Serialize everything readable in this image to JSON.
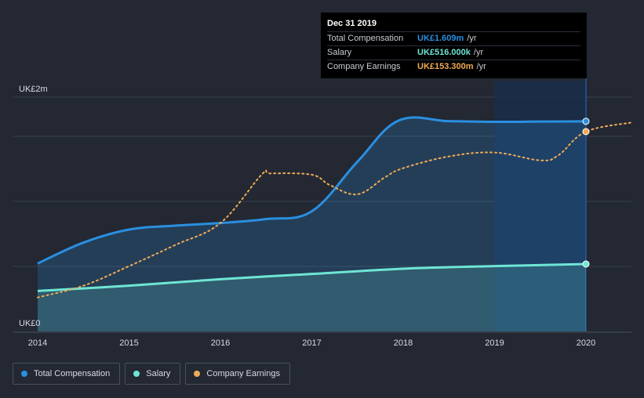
{
  "chart_data": {
    "type": "area",
    "title": "",
    "xlabel": "",
    "ylabel": "",
    "x_ticks": [
      "2014",
      "2015",
      "2016",
      "2017",
      "2018",
      "2019",
      "2020"
    ],
    "y_tick_labels": [
      "UK£2m",
      "UK£0"
    ],
    "ylim": [
      0,
      1.8
    ],
    "xlim": [
      2014,
      2020.5
    ],
    "series": [
      {
        "name": "Total Compensation",
        "color": "#2a8fe0",
        "style": "solid-area",
        "x": [
          2014.0,
          2014.5,
          2015.0,
          2015.5,
          2016.0,
          2016.5,
          2017.0,
          2017.5,
          2017.95,
          2018.5,
          2019.0,
          2019.5,
          2020.0
        ],
        "y": [
          0.52,
          0.68,
          0.78,
          0.81,
          0.83,
          0.86,
          0.92,
          1.3,
          1.615,
          1.61,
          1.605,
          1.607,
          1.609
        ]
      },
      {
        "name": "Salary",
        "color": "#6ee6d4",
        "style": "solid-area",
        "x": [
          2014.0,
          2015.0,
          2016.0,
          2017.0,
          2018.0,
          2019.0,
          2020.0
        ],
        "y": [
          0.31,
          0.35,
          0.4,
          0.44,
          0.48,
          0.5,
          0.516
        ]
      },
      {
        "name": "Company Earnings",
        "color": "#f0aa55",
        "style": "dotted",
        "x": [
          2014.0,
          2014.5,
          2015.0,
          2015.5,
          2016.0,
          2016.45,
          2016.55,
          2017.0,
          2017.2,
          2017.5,
          2017.8,
          2018.0,
          2018.5,
          2019.0,
          2019.5,
          2019.7,
          2020.0,
          2020.5
        ],
        "y": [
          0.26,
          0.35,
          0.5,
          0.66,
          0.83,
          1.2,
          1.21,
          1.2,
          1.12,
          1.05,
          1.18,
          1.25,
          1.34,
          1.37,
          1.31,
          1.35,
          1.53,
          1.6
        ]
      }
    ],
    "highlight": {
      "from": 2019.0,
      "to": 2020.0,
      "selected_x": 2020.0
    },
    "tooltip": {
      "date": "Dec 31 2019",
      "rows": [
        {
          "label": "Total Compensation",
          "value": "UK£1.609m",
          "unit": "/yr",
          "color": "#2a8fe0"
        },
        {
          "label": "Salary",
          "value": "UK£516.000k",
          "unit": "/yr",
          "color": "#6ee6d4"
        },
        {
          "label": "Company Earnings",
          "value": "UK£153.300m",
          "unit": "/yr",
          "color": "#f0aa55"
        }
      ]
    },
    "legend": [
      {
        "name": "Total Compensation",
        "color": "#2a8fe0"
      },
      {
        "name": "Salary",
        "color": "#6ee6d4"
      },
      {
        "name": "Company Earnings",
        "color": "#f0aa55"
      }
    ]
  }
}
